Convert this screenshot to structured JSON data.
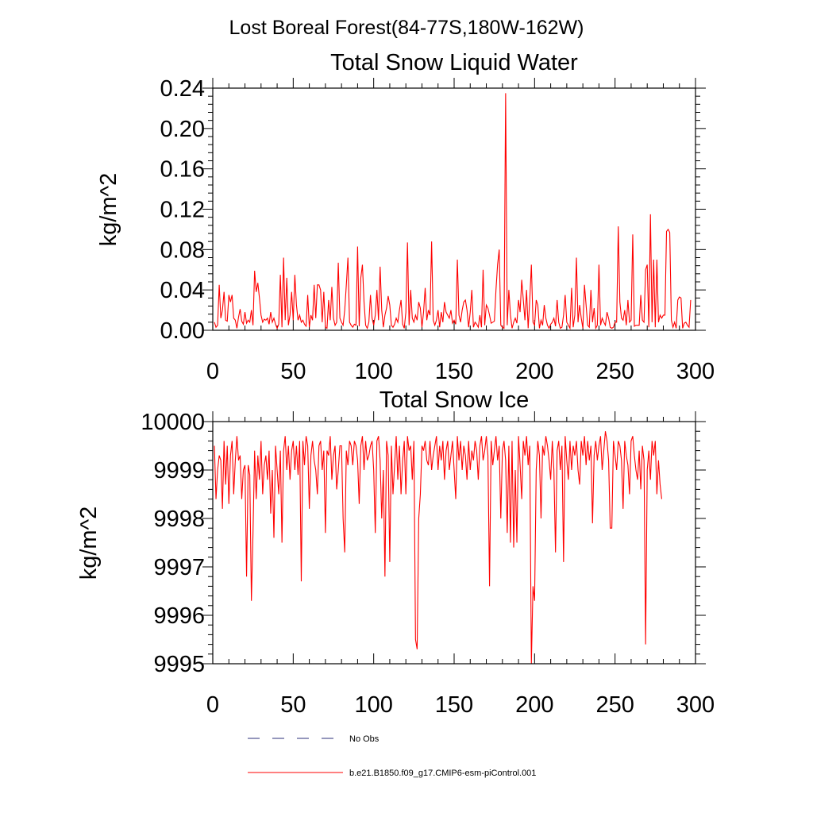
{
  "figure": {
    "title": "Lost Boreal Forest(84-77S,180W-162W)"
  },
  "colors": {
    "model_line": "#ff0000",
    "obs_line": "#2b2f7a",
    "axes": "#000000"
  },
  "legend": {
    "obs_label": "No Obs",
    "model_label": "b.e21.B1850.f09_g17.CMIP6-esm-piControl.001"
  },
  "chart_data": [
    {
      "type": "line",
      "title": "Total Snow Liquid Water",
      "xlabel": "",
      "ylabel": "kg/m^2",
      "xlim": [
        0,
        300
      ],
      "ylim": [
        0.0,
        0.24
      ],
      "xticks": [
        0,
        50,
        100,
        150,
        200,
        250,
        300
      ],
      "xtick_labels": [
        "0",
        "50",
        "100",
        "150",
        "200",
        "250",
        "300"
      ],
      "yticks": [
        0.0,
        0.04,
        0.08,
        0.12,
        0.16,
        0.2,
        0.24
      ],
      "ytick_labels": [
        "0.00",
        "0.04",
        "0.08",
        "0.12",
        "0.16",
        "0.20",
        "0.24"
      ],
      "series": [
        {
          "name": "b.e21.B1850.f09_g17.CMIP6-esm-piControl.001",
          "x_start": 1,
          "values": [
            0.008,
            0.003,
            0.005,
            0.045,
            0.012,
            0.02,
            0.038,
            0.01,
            0.009,
            0.035,
            0.028,
            0.035,
            0.012,
            0.01,
            0.002,
            0.013,
            0.021,
            0.009,
            0.006,
            0.018,
            0.007,
            0.01,
            0.008,
            0.02,
            0.005,
            0.059,
            0.038,
            0.047,
            0.032,
            0.015,
            0.008,
            0.011,
            0.01,
            0.012,
            0.006,
            0.018,
            0.008,
            0.012,
            0.006,
            0.002,
            0.006,
            0.055,
            0.003,
            0.072,
            0.01,
            0.052,
            0.005,
            0.015,
            0.038,
            0.01,
            0.055,
            0.025,
            0.01,
            0.015,
            0.008,
            0.01,
            0.006,
            0.004,
            0.035,
            0.003,
            0.015,
            0.01,
            0.045,
            0.012,
            0.045,
            0.045,
            0.04,
            0.008,
            0.038,
            0.003,
            0.002,
            0.03,
            0.01,
            0.043,
            0.012,
            0.005,
            0.008,
            0.067,
            0.012,
            0.008,
            0.005,
            0.02,
            0.045,
            0.072,
            0.008,
            0.005,
            0.003,
            0.006,
            0.005,
            0.083,
            0.004,
            0.052,
            0.065,
            0.028,
            0.005,
            0.002,
            0.008,
            0.035,
            0.012,
            0.005,
            0.015,
            0.04,
            0.01,
            0.063,
            0.02,
            0.003,
            0.015,
            0.022,
            0.034,
            0.025,
            0.005,
            0.003,
            0.006,
            0.012,
            0.008,
            0.02,
            0.03,
            0.006,
            0.002,
            0.018,
            0.087,
            0.005,
            0.04,
            0.012,
            0.008,
            0.015,
            0.01,
            0.028,
            0.022,
            0.003,
            0.018,
            0.042,
            0.01,
            0.02,
            0.015,
            0.088,
            0.01,
            0.005,
            0.01,
            0.02,
            0.003,
            0.018,
            0.008,
            0.028,
            0.018,
            0.015,
            0.012,
            0.02,
            0.007,
            0.01,
            0.006,
            0.07,
            0.015,
            0.008,
            0.02,
            0.028,
            0.03,
            0.02,
            0.003,
            0.018,
            0.04,
            0.003,
            0.008,
            0.006,
            0.003,
            0.015,
            0.003,
            0.06,
            0.005,
            0.025,
            0.022,
            0.015,
            0.007,
            0.008,
            0.009,
            0.04,
            0.065,
            0.08,
            0.005,
            0.003,
            0.002,
            0.235,
            0.005,
            0.04,
            0.015,
            0.002,
            0.008,
            0.012,
            0.007,
            0.03,
            0.018,
            0.05,
            0.03,
            0.01,
            0.04,
            0.002,
            0.03,
            0.065,
            0.008,
            0.005,
            0.03,
            0.025,
            0.002,
            0.01,
            0.005,
            0.025,
            0.012,
            0.005,
            0.002,
            0.006,
            0.008,
            0.012,
            0.004,
            0.03,
            0.008,
            0.002,
            0.003,
            0.015,
            0.035,
            0.008,
            0.005,
            0.002,
            0.042,
            0.003,
            0.015,
            0.072,
            0.008,
            0.025,
            0.012,
            0.002,
            0.045,
            0.025,
            0.005,
            0.003,
            0.04,
            0.008,
            0.022,
            0.002,
            0.005,
            0.065,
            0.005,
            0.012,
            0.008,
            0.005,
            0.018,
            0.012,
            0.003,
            0.002,
            0.003,
            0.008,
            0.008,
            0.103,
            0.028,
            0.012,
            0.01,
            0.02,
            0.005,
            0.03,
            0.008,
            0.01,
            0.095,
            0.004,
            0.005,
            0.005,
            0.005,
            0.035,
            0.01,
            0.008,
            0.06,
            0.065,
            0.003,
            0.115,
            0.008,
            0.07,
            0.003,
            0.07,
            0.008,
            0.015,
            0.012,
            0.015,
            0.015,
            0.098,
            0.1,
            0.097,
            0.01,
            0.003,
            0.008,
            0.002,
            0.03,
            0.033,
            0.032,
            0.002,
            0.007,
            0.008,
            0.005,
            0.003,
            0.03
          ]
        }
      ]
    },
    {
      "type": "line",
      "title": "Total Snow Ice",
      "xlabel": "",
      "ylabel": "kg/m^2",
      "xlim": [
        0,
        300
      ],
      "ylim": [
        9995,
        10000
      ],
      "xticks": [
        0,
        50,
        100,
        150,
        200,
        250,
        300
      ],
      "xtick_labels": [
        "0",
        "50",
        "100",
        "150",
        "200",
        "250",
        "300"
      ],
      "yticks": [
        9995,
        9996,
        9997,
        9998,
        9999,
        10000
      ],
      "ytick_labels": [
        "9995",
        "9996",
        "9997",
        "9998",
        "9999",
        "10000"
      ],
      "series": [
        {
          "name": "b.e21.B1850.f09_g17.CMIP6-esm-piControl.001",
          "x_start": 1,
          "values": [
            9999.5,
            9998.4,
            9999.0,
            9999.3,
            9999.2,
            9998.2,
            9999.6,
            9998.7,
            9999.5,
            9998.3,
            9999.3,
            9999.6,
            9998.5,
            9999.2,
            9999.7,
            9999.2,
            9999.3,
            9998.4,
            9999.0,
            9999.1,
            9996.8,
            9999.1,
            9998.9,
            9996.3,
            9997.7,
            9999.4,
            9998.4,
            9999.3,
            9998.8,
            9999.6,
            9998.5,
            9999.1,
            9999.3,
            9998.8,
            9999.4,
            9998.1,
            9999.0,
            9997.6,
            9999.5,
            9999.0,
            9998.5,
            9999.4,
            9997.5,
            9999.4,
            9999.7,
            9999.0,
            9999.5,
            9998.8,
            9999.4,
            9999.6,
            9999.0,
            9999.5,
            9998.9,
            9999.6,
            9996.7,
            9999.6,
            9999.1,
            9999.7,
            9999.5,
            9998.2,
            9999.3,
            9999.6,
            9999.2,
            9999.0,
            9998.5,
            9999.5,
            9999.6,
            9999.0,
            9999.4,
            9997.7,
            9999.4,
            9999.3,
            9999.7,
            9998.8,
            9999.3,
            9999.5,
            9998.6,
            9999.0,
            9999.5,
            9999.5,
            9998.0,
            9997.3,
            9999.4,
            9999.1,
            9999.6,
            9999.5,
            9999.1,
            9999.6,
            9999.5,
            9999.2,
            9998.3,
            9999.5,
            9999.7,
            9999.0,
            9999.6,
            9999.2,
            9999.3,
            9999.5,
            9999.6,
            9999.0,
            9997.7,
            9999.6,
            9999.7,
            9999.2,
            9998.0,
            9999.0,
            9996.8,
            9999.6,
            9999.3,
            9997.1,
            9999.5,
            9998.5,
            9999.1,
            9999.7,
            9998.8,
            9999.5,
            9998.5,
            9999.2,
            9999.6,
            9998.5,
            9999.7,
            9999.4,
            9999.5,
            9998.8,
            9999.6,
            9995.5,
            9995.3,
            9998.0,
            9998.5,
            9999.5,
            9999.4,
            9999.6,
            9999.2,
            9999.1,
            9999.6,
            9999.0,
            9999.3,
            9999.5,
            9999.7,
            9999.0,
            9999.5,
            9999.2,
            9999.6,
            9998.8,
            9999.4,
            9999.6,
            9999.0,
            9999.3,
            9999.6,
            9999.0,
            9998.4,
            9999.7,
            9999.2,
            9999.6,
            9999.0,
            9999.5,
            9999.3,
            9998.8,
            9999.6,
            9999.0,
            9999.4,
            9999.2,
            9999.6,
            9999.4,
            9998.8,
            9999.5,
            9999.7,
            9999.2,
            9999.4,
            9999.7,
            9999.3,
            9996.6,
            9999.6,
            9999.1,
            9999.4,
            9999.7,
            9999.2,
            9999.5,
            9998.0,
            9999.4,
            9999.6,
            9999.2,
            9997.7,
            9999.5,
            9997.5,
            9999.6,
            9997.4,
            9999.0,
            9997.5,
            9999.7,
            9999.1,
            9998.4,
            9999.6,
            9999.3,
            9999.7,
            9999.1,
            9999.5,
            9995.0,
            9996.6,
            9996.3,
            9999.0,
            9999.6,
            9999.3,
            9998.0,
            9999.5,
            9999.3,
            9999.7,
            9999.5,
            9999.2,
            9998.8,
            9999.6,
            9999.0,
            9997.3,
            9999.4,
            9999.6,
            9999.0,
            9999.5,
            9997.1,
            9999.7,
            9999.2,
            9998.8,
            9999.6,
            9999.0,
            9999.5,
            9999.3,
            9999.6,
            9999.0,
            9998.7,
            9999.6,
            9999.3,
            9999.7,
            9999.1,
            9999.6,
            9999.2,
            9999.5,
            9997.9,
            9999.3,
            9999.6,
            9999.2,
            9999.5,
            9999.7,
            9999.0,
            9999.4,
            9999.8,
            9999.6,
            9999.2,
            9997.8,
            9997.8,
            9999.6,
            9999.3,
            9999.0,
            9999.6,
            9999.5,
            9999.2,
            9998.2,
            9999.6,
            9999.3,
            9999.1,
            9998.5,
            9999.6,
            9999.7,
            9999.3,
            9999.0,
            9998.8,
            9999.4,
            9998.6,
            9999.5,
            9999.2,
            9995.4,
            9999.0,
            9999.4,
            9998.8,
            9999.6,
            9999.3,
            9999.6,
            9998.5,
            9999.2,
            9998.7,
            9998.4
          ]
        }
      ]
    }
  ]
}
